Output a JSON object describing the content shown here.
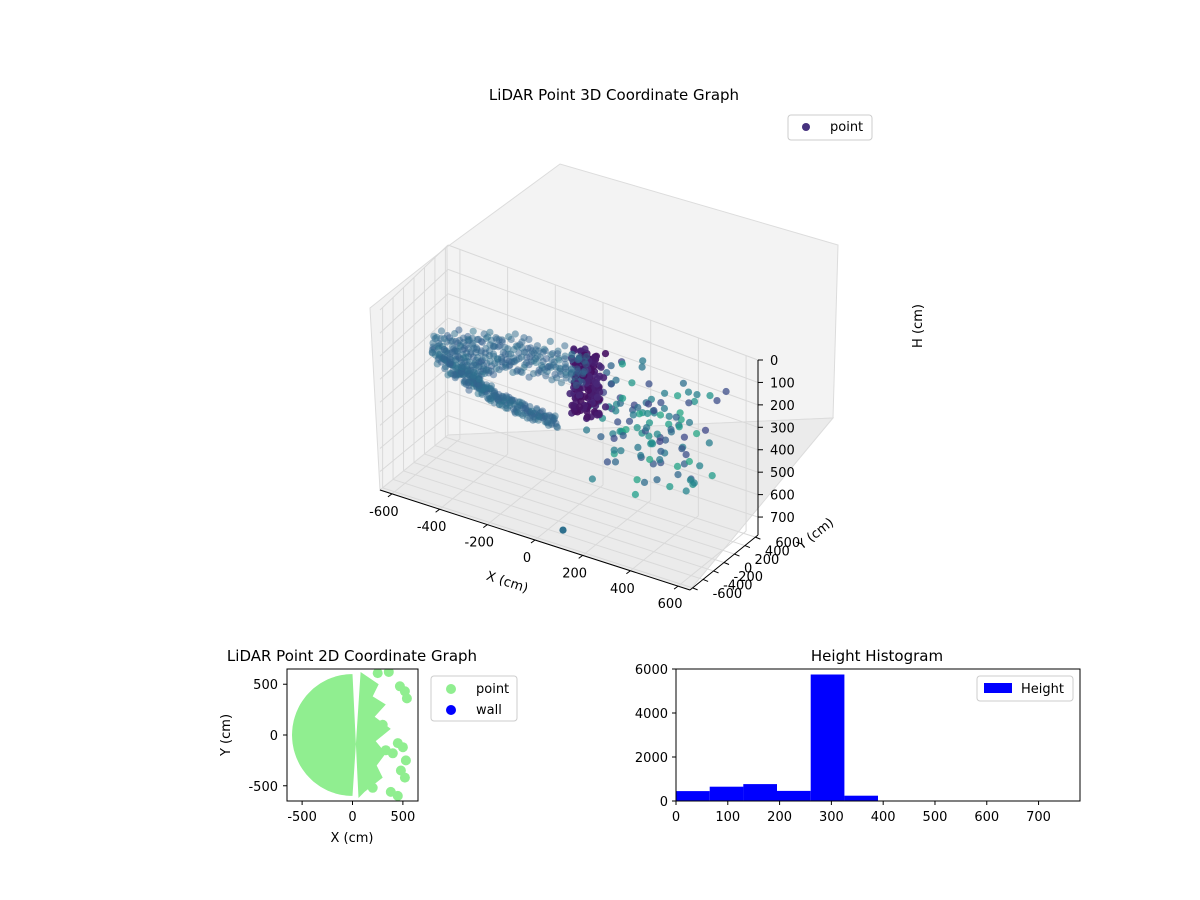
{
  "chart_data": [
    {
      "type": "scatter",
      "projection": "3d",
      "title": "LiDAR Point 3D Coordinate Graph",
      "xlabel": "X (cm)",
      "ylabel": "Y (cm)",
      "zlabel": "H (cm)",
      "xlim": [
        -650,
        650
      ],
      "ylim": [
        -650,
        650
      ],
      "zlim": [
        780,
        0
      ],
      "z_axis_inverted": true,
      "x_ticks": [
        "-600",
        "-400",
        "-200",
        "0",
        "200",
        "400",
        "600"
      ],
      "y_ticks": [
        "-600",
        "-400",
        "-200",
        "0",
        "200",
        "400",
        "600"
      ],
      "z_ticks": [
        "0",
        "100",
        "200",
        "300",
        "400",
        "500",
        "600",
        "700"
      ],
      "grid": true,
      "legend": "top-right",
      "colormap": "viridis",
      "series": [
        {
          "name": "point",
          "color": "#46327e",
          "description_values": {
            "room_ring_radius_range": [
              370,
              560
            ],
            "room_ring_angle_range_deg": [
              95,
              275
            ],
            "ring_height": 300,
            "wall_cluster": {
              "x": [
                -60,
                60
              ],
              "y": [
                270,
                430
              ],
              "h": [
                140,
                420
              ]
            },
            "scattered_east_points": {
              "x": [
                120,
                560
              ],
              "y": [
                -420,
                520
              ],
              "h": [
                100,
                520
              ]
            },
            "outlier": {
              "x": 80,
              "y": -480,
              "h": 740
            }
          }
        }
      ]
    },
    {
      "type": "scatter",
      "title": "LiDAR Point 2D Coordinate Graph",
      "xlabel": "X (cm)",
      "ylabel": "Y (cm)",
      "xlim": [
        -650,
        650
      ],
      "ylim": [
        -650,
        650
      ],
      "x_ticks": [
        "-500",
        "0",
        "500"
      ],
      "y_ticks": [
        "-500",
        "0",
        "500"
      ],
      "legend": "outside-right",
      "series": [
        {
          "name": "point",
          "color": "#90ee90",
          "extent": {
            "x": [
              -560,
              560
            ],
            "y": [
              -620,
              620
            ],
            "shape": "disc filled on west half, ragged east edge"
          }
        },
        {
          "name": "wall",
          "color": "#0000ff",
          "points": []
        }
      ]
    },
    {
      "type": "bar",
      "subtype": "histogram",
      "title": "Height Histogram",
      "xlabel": "",
      "ylabel": "",
      "xlim": [
        0,
        780
      ],
      "ylim": [
        0,
        6000
      ],
      "x_ticks": [
        "0",
        "100",
        "200",
        "300",
        "400",
        "500",
        "600",
        "700"
      ],
      "y_ticks": [
        "0",
        "2000",
        "4000",
        "6000"
      ],
      "legend": "top-right",
      "series": [
        {
          "name": "Height",
          "color": "#0000ff",
          "bins": [
            {
              "from": 0,
              "to": 65,
              "count": 450
            },
            {
              "from": 65,
              "to": 130,
              "count": 650
            },
            {
              "from": 130,
              "to": 195,
              "count": 770
            },
            {
              "from": 195,
              "to": 260,
              "count": 460
            },
            {
              "from": 260,
              "to": 325,
              "count": 5750
            },
            {
              "from": 325,
              "to": 390,
              "count": 240
            },
            {
              "from": 390,
              "to": 455,
              "count": 10
            },
            {
              "from": 455,
              "to": 520,
              "count": 5
            },
            {
              "from": 520,
              "to": 585,
              "count": 5
            },
            {
              "from": 585,
              "to": 650,
              "count": 5
            },
            {
              "from": 650,
              "to": 715,
              "count": 5
            },
            {
              "from": 715,
              "to": 780,
              "count": 5
            }
          ]
        }
      ]
    }
  ]
}
